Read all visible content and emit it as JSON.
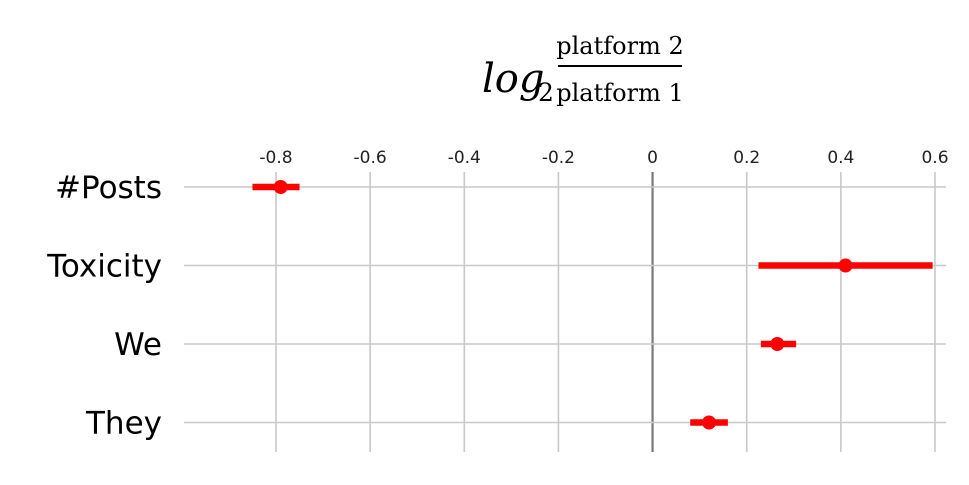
{
  "chart_data": {
    "type": "forest",
    "title": {
      "prefix": "log",
      "subscript": "2",
      "numerator": "platform 2",
      "denominator": "platform 1"
    },
    "xlim": [
      -0.88,
      0.62
    ],
    "x_ticks": [
      -0.8,
      -0.6,
      -0.4,
      -0.2,
      0,
      0.2,
      0.4,
      0.6
    ],
    "x_tick_labels": [
      "-0.8",
      "-0.6",
      "-0.4",
      "-0.2",
      "0",
      "0.2",
      "0.4",
      "0.6"
    ],
    "grid": true,
    "categories": [
      "#Posts",
      "Toxicity",
      "We",
      "They"
    ],
    "values": [
      -0.79,
      0.41,
      0.265,
      0.12
    ],
    "ci_low": [
      -0.85,
      0.225,
      0.23,
      0.08
    ],
    "ci_high": [
      -0.75,
      0.595,
      0.305,
      0.16
    ],
    "colors": {
      "marker": "#ff0000",
      "grid": "#c8c8c8",
      "zero_line": "#7a7a7a"
    }
  }
}
